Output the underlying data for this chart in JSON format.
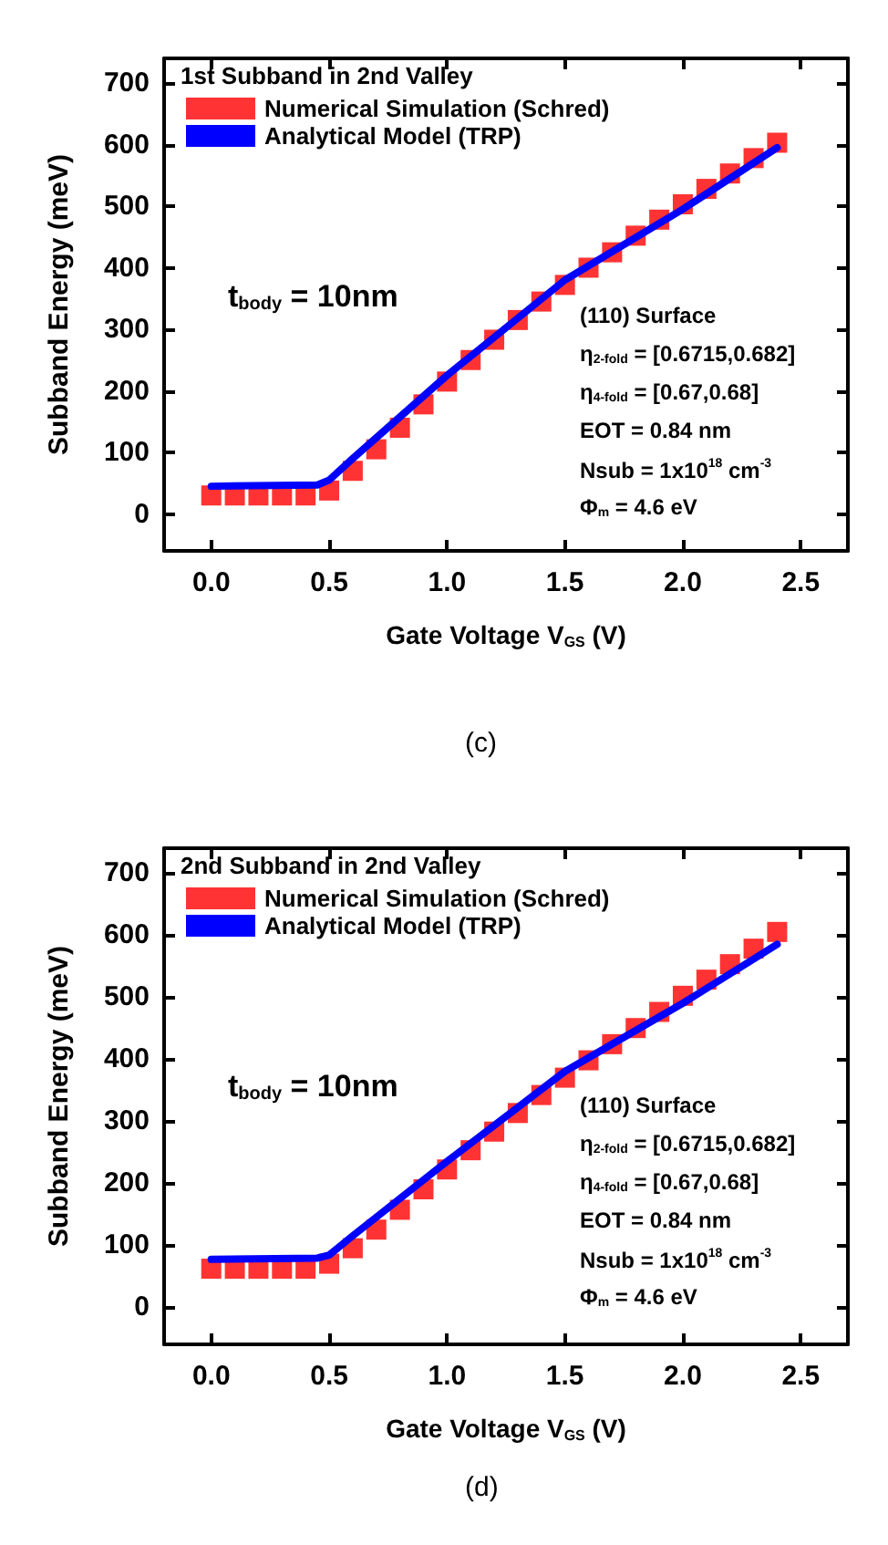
{
  "chart_data": [
    {
      "type": "scatter",
      "xlabel": "Gate Voltage V$_{GS}$ (V)",
      "ylabel": "Subband Energy (meV)",
      "legend_title": "1st Subband in 2nd Valley",
      "legend": "top left",
      "grid": false,
      "xlim": [
        -0.2,
        2.7
      ],
      "xticks": [
        {
          "value": 0,
          "label": "0.0"
        },
        0.5,
        {
          "value": 1,
          "label": "1.0"
        },
        1.5,
        {
          "value": 2,
          "label": "2.0"
        },
        2.5
      ],
      "ylim": [
        -60,
        740
      ],
      "yticks": [
        0,
        100,
        200,
        300,
        400,
        500,
        600,
        700
      ],
      "series": [
        {
          "name": "Numerical Simulation (Schred)",
          "color": "#ff0000",
          "marker": "square",
          "x": [
            0,
            0.1,
            0.2,
            0.3,
            0.4,
            0.5,
            0.6,
            0.7,
            0.8,
            0.9,
            1.0,
            1.1,
            1.2,
            1.3,
            1.4,
            1.5,
            1.6,
            1.7,
            1.8,
            1.9,
            2.0,
            2.1,
            2.2,
            2.3,
            2.4
          ],
          "values": [
            30,
            30,
            30,
            30,
            30,
            38,
            70,
            105,
            140,
            178,
            215,
            250,
            283,
            315,
            345,
            372,
            400,
            425,
            452,
            478,
            503,
            528,
            553,
            578,
            603
          ]
        },
        {
          "name": "Analytical Model (TRP)",
          "type": "line",
          "color": "#0000ff",
          "marker": "none",
          "line_style": "solid",
          "x": [
            0,
            0.45,
            0.5,
            0.6,
            1.0,
            1.5,
            2.0,
            2.4
          ],
          "values": [
            45,
            47,
            55,
            90,
            225,
            380,
            495,
            595
          ]
        }
      ],
      "annotations": [
        "t$_{body}$ = 10nm",
        "(110) Surface",
        "η$_{2-fold}$ = [0.6715,0.682]",
        "η$_{4-fold}$ = [0.67,0.68]",
        "EOT = 0.84 nm",
        "Nsub = 1x10$^{18}$ cm$^{-3}$",
        "Φ$_{m}$ = 4.6 eV",
        "(c)"
      ]
    },
    {
      "type": "scatter",
      "xlabel": "Gate Voltage V$_{GS}$ (V)",
      "ylabel": "Subband Energy (meV)",
      "legend_title": "2nd Subband in 2nd Valley",
      "legend": "top left",
      "grid": false,
      "xlim": [
        -0.2,
        2.7
      ],
      "xticks": [
        {
          "value": 0,
          "label": "0.0"
        },
        0.5,
        {
          "value": 1,
          "label": "1.0"
        },
        1.5,
        {
          "value": 2,
          "label": "2.0"
        },
        2.5
      ],
      "ylim": [
        -60,
        740
      ],
      "yticks": [
        0,
        100,
        200,
        300,
        400,
        500,
        600,
        700
      ],
      "series": [
        {
          "name": "Numerical Simulation (Schred)",
          "color": "#ff0000",
          "marker": "square",
          "x": [
            0,
            0.1,
            0.2,
            0.3,
            0.4,
            0.5,
            0.6,
            0.7,
            0.8,
            0.9,
            1.0,
            1.1,
            1.2,
            1.3,
            1.4,
            1.5,
            1.6,
            1.7,
            1.8,
            1.9,
            2.0,
            2.1,
            2.2,
            2.3,
            2.4
          ],
          "values": [
            62,
            62,
            62,
            62,
            62,
            70,
            95,
            125,
            157,
            190,
            222,
            253,
            283,
            313,
            342,
            370,
            398,
            424,
            450,
            476,
            502,
            528,
            553,
            578,
            605
          ]
        },
        {
          "name": "Analytical Model (TRP)",
          "type": "line",
          "color": "#0000ff",
          "marker": "none",
          "line_style": "solid",
          "x": [
            0,
            0.45,
            0.5,
            0.6,
            1.0,
            1.5,
            2.0,
            2.4
          ],
          "values": [
            77,
            79,
            84,
            115,
            235,
            380,
            490,
            585
          ]
        }
      ],
      "annotations": [
        "t$_{body}$ = 10nm",
        "(110) Surface",
        "η$_{2-fold}$ = [0.6715,0.682]",
        "η$_{4-fold}$ = [0.67,0.68]",
        "EOT = 0.84 nm",
        "Nsub = 1x10$^{18}$ cm$^{-3}$",
        "Φ$_{m}$ = 4.6 eV",
        "(d)"
      ]
    }
  ]
}
